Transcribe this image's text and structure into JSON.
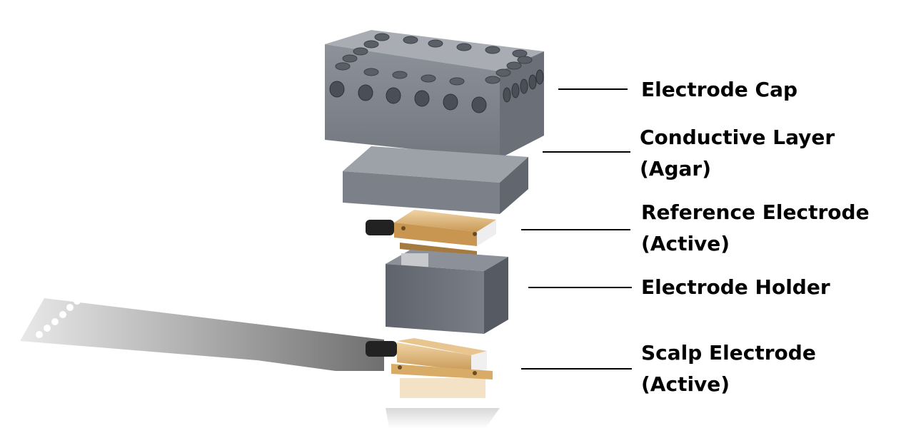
{
  "labels": {
    "electrode_cap": "Electrode Cap",
    "conductive_layer_1": "Conductive Layer",
    "conductive_layer_2": "(Agar)",
    "reference_electrode_1": "Reference Electrode",
    "reference_electrode_2": "(Active)",
    "electrode_holder": "Electrode Holder",
    "scalp_electrode_1": "Scalp Electrode",
    "scalp_electrode_2": "(Active)"
  },
  "colors": {
    "cap_gray": "#7d828b",
    "copper": "#d9b277",
    "shadow": "#b9b9b9",
    "holder_gray": "#6c7079"
  }
}
